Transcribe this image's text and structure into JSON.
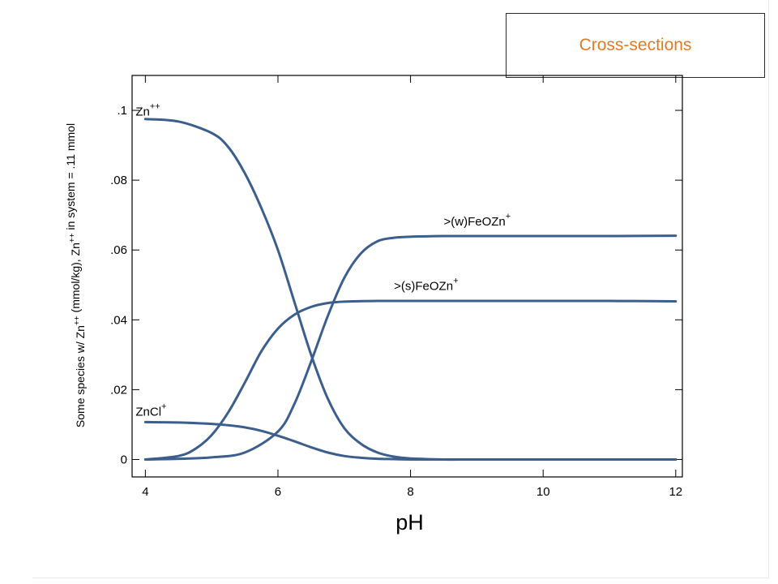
{
  "button": {
    "label": "Cross-sections"
  },
  "chart_data": {
    "type": "line",
    "xlabel": "pH",
    "ylabel": {
      "parts": [
        {
          "t": "Some species w/ Zn"
        },
        {
          "t": "++",
          "sup": true
        },
        {
          "t": " (mmol/kg), Zn"
        },
        {
          "t": "++",
          "sup": true
        },
        {
          "t": " in system = .11 mmol"
        }
      ]
    },
    "xlim": [
      3.8,
      12.1
    ],
    "ylim": [
      -0.005,
      0.11
    ],
    "xticks": [
      4,
      6,
      8,
      10,
      12
    ],
    "xtick_labels": [
      "4",
      "6",
      "8",
      "10",
      "12"
    ],
    "yticks": [
      0,
      0.02,
      0.04,
      0.06,
      0.08,
      0.1
    ],
    "ytick_labels": [
      "0",
      ".02",
      ".04",
      ".06",
      ".08",
      ".1"
    ],
    "grid": false,
    "line_color": "#3b5e8c",
    "series": [
      {
        "name": "Zn++",
        "label": {
          "base": "Zn",
          "sup": "++",
          "x": 4.0,
          "y": 0.0985
        },
        "x": [
          4.0,
          4.5,
          5.0,
          5.25,
          5.5,
          5.75,
          6.0,
          6.25,
          6.5,
          6.75,
          7.0,
          7.25,
          7.5,
          7.75,
          8.0,
          8.5,
          9,
          10,
          11,
          12
        ],
        "y": [
          0.0975,
          0.0968,
          0.0935,
          0.0895,
          0.082,
          0.072,
          0.06,
          0.045,
          0.03,
          0.0175,
          0.009,
          0.0045,
          0.002,
          0.0008,
          0.0003,
          0.0,
          0.0,
          0.0,
          0.0,
          0.0
        ]
      },
      {
        "name": ">(w)FeOZn+",
        "label": {
          "base": ">(w)FeOZn",
          "sup": "+",
          "x": 8.5,
          "y": 0.067
        },
        "x": [
          4.0,
          4.5,
          5.0,
          5.5,
          6.0,
          6.25,
          6.5,
          6.75,
          7.0,
          7.25,
          7.5,
          7.75,
          8.0,
          8.5,
          9,
          10,
          11,
          12
        ],
        "y": [
          0.0,
          0.0002,
          0.0006,
          0.002,
          0.008,
          0.016,
          0.028,
          0.041,
          0.052,
          0.059,
          0.0625,
          0.0635,
          0.0638,
          0.064,
          0.064,
          0.064,
          0.064,
          0.0641
        ]
      },
      {
        "name": ">(s)FeOZn+",
        "label": {
          "base": ">(s)FeOZn",
          "sup": "+",
          "x": 7.75,
          "y": 0.0485
        },
        "x": [
          4.0,
          4.5,
          4.75,
          5.0,
          5.25,
          5.5,
          5.75,
          6.0,
          6.25,
          6.5,
          6.75,
          7.0,
          7.5,
          8.0,
          8.5,
          9,
          10,
          11,
          12
        ],
        "y": [
          0.0,
          0.001,
          0.003,
          0.007,
          0.0135,
          0.022,
          0.031,
          0.0375,
          0.0415,
          0.0437,
          0.0448,
          0.0452,
          0.0454,
          0.0454,
          0.0454,
          0.0454,
          0.0454,
          0.0454,
          0.0453
        ]
      },
      {
        "name": "ZnCl+",
        "label": {
          "base": "ZnCl",
          "sup": "+",
          "x": 4.0,
          "y": 0.0125
        },
        "x": [
          4.0,
          4.5,
          5.0,
          5.25,
          5.5,
          5.75,
          6.0,
          6.25,
          6.5,
          6.75,
          7.0,
          7.25,
          7.5,
          7.75,
          8.0,
          8.5,
          9,
          10,
          11,
          12
        ],
        "y": [
          0.0107,
          0.0106,
          0.0102,
          0.0098,
          0.0092,
          0.0082,
          0.0068,
          0.0052,
          0.0035,
          0.002,
          0.001,
          0.0005,
          0.0002,
          0.0001,
          0.0,
          0.0,
          0.0,
          0.0,
          0.0,
          0.0
        ]
      }
    ]
  }
}
